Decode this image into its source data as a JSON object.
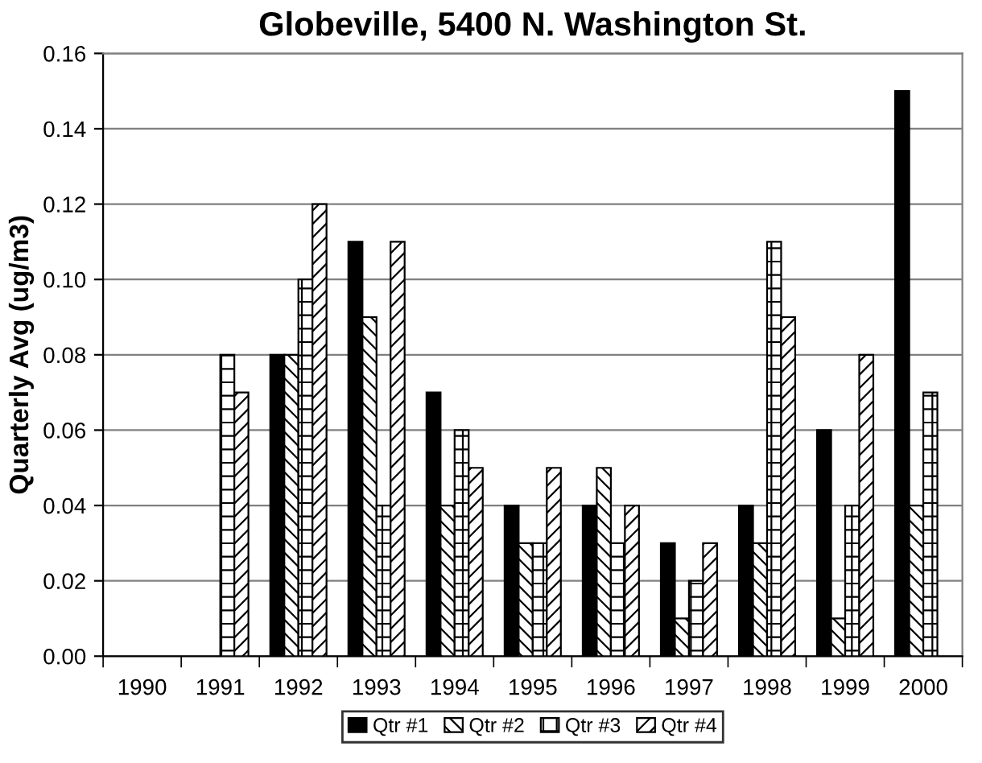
{
  "chart_data": {
    "type": "bar",
    "title": "Globeville, 5400 N. Washington St.",
    "ylabel": "Quarterly Avg (ug/m3)",
    "categories": [
      "1990",
      "1991",
      "1992",
      "1993",
      "1994",
      "1995",
      "1996",
      "1997",
      "1998",
      "1999",
      "2000"
    ],
    "series": [
      {
        "name": "Qtr #1",
        "color": "#000000",
        "values": [
          null,
          null,
          0.08,
          0.11,
          0.07,
          0.04,
          0.04,
          0.03,
          0.04,
          0.06,
          0.15
        ]
      },
      {
        "name": "Qtr #2",
        "color": "#000000",
        "values": [
          null,
          null,
          0.08,
          0.09,
          0.04,
          0.03,
          0.05,
          0.01,
          0.03,
          0.01,
          0.04
        ]
      },
      {
        "name": "Qtr #3",
        "color": "#000000",
        "values": [
          null,
          0.08,
          0.1,
          0.04,
          0.06,
          0.03,
          0.03,
          0.02,
          0.11,
          0.04,
          0.07
        ]
      },
      {
        "name": "Qtr #4",
        "color": "#000000",
        "values": [
          null,
          0.07,
          0.12,
          0.11,
          0.05,
          0.05,
          0.04,
          0.03,
          0.09,
          0.08,
          null
        ]
      }
    ],
    "ylim": [
      0,
      0.16
    ],
    "yticks": [
      {
        "value": 0,
        "label": "0.00"
      },
      {
        "value": 0.02,
        "label": "0.02"
      },
      {
        "value": 0.04,
        "label": "0.04"
      },
      {
        "value": 0.06,
        "label": "0.06"
      },
      {
        "value": 0.08,
        "label": "0.08"
      },
      {
        "value": 0.1,
        "label": "0.10"
      },
      {
        "value": 0.12,
        "label": "0.12"
      },
      {
        "value": 0.14,
        "label": "0.14"
      },
      {
        "value": 0.16,
        "label": "0.16"
      }
    ],
    "grid": "y",
    "legend": "bottom"
  }
}
